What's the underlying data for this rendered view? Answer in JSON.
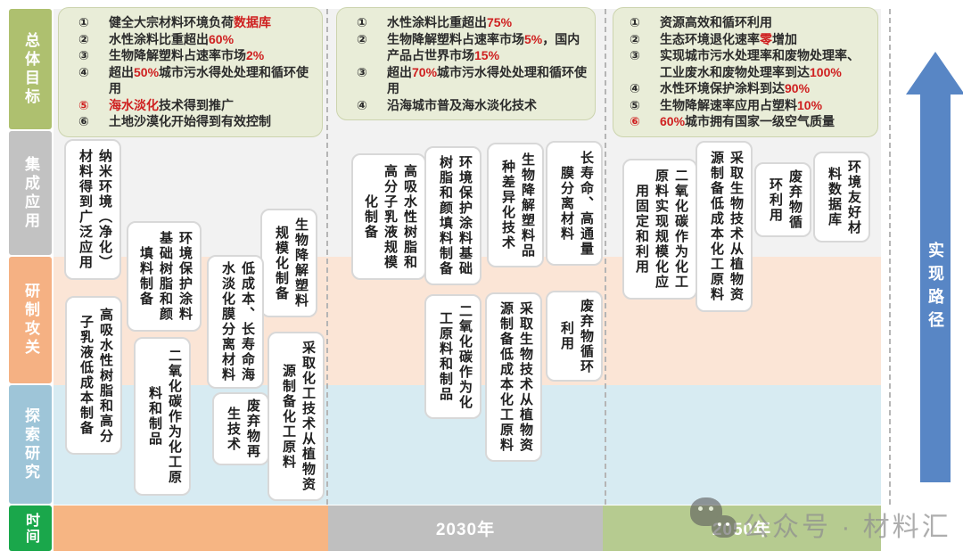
{
  "sidebar": {
    "rows": [
      {
        "label": "总体目标"
      },
      {
        "label": "集成应用"
      },
      {
        "label": "研制攻关"
      },
      {
        "label": "探索研究"
      },
      {
        "label": "时间"
      }
    ]
  },
  "goals": {
    "c1": [
      {
        "num": "①",
        "num_red": false,
        "segments": [
          {
            "t": "健全大宗材料环境负荷"
          },
          {
            "t": "数据库",
            "red": true
          }
        ]
      },
      {
        "num": "②",
        "num_red": false,
        "segments": [
          {
            "t": "水性涂料比重超出"
          },
          {
            "t": "60%",
            "red": true
          }
        ]
      },
      {
        "num": "③",
        "num_red": false,
        "segments": [
          {
            "t": "生物降解塑料占速率市场"
          },
          {
            "t": "2%",
            "red": true
          }
        ]
      },
      {
        "num": "④",
        "num_red": false,
        "segments": [
          {
            "t": "超出"
          },
          {
            "t": "50%",
            "red": true
          },
          {
            "t": "城市污水得处处理和循环使用"
          }
        ]
      },
      {
        "num": "⑤",
        "num_red": true,
        "segments": [
          {
            "t": "海水淡化",
            "red": true
          },
          {
            "t": "技术得到推广"
          }
        ]
      },
      {
        "num": "⑥",
        "num_red": false,
        "segments": [
          {
            "t": "土地沙漠化开始得到有效控制"
          }
        ]
      }
    ],
    "c2": [
      {
        "num": "①",
        "num_red": false,
        "segments": [
          {
            "t": "水性涂料比重超出"
          },
          {
            "t": "75%",
            "red": true
          }
        ]
      },
      {
        "num": "②",
        "num_red": false,
        "segments": [
          {
            "t": "生物降解塑料占速率市场"
          },
          {
            "t": "5%",
            "red": true
          },
          {
            "t": "，国内产品占世界市场"
          },
          {
            "t": "15%",
            "red": true
          }
        ]
      },
      {
        "num": "③",
        "num_red": false,
        "segments": [
          {
            "t": "超出"
          },
          {
            "t": "70%",
            "red": true
          },
          {
            "t": "城市污水得处处理和循环使用"
          }
        ]
      },
      {
        "num": "④",
        "num_red": false,
        "segments": [
          {
            "t": "沿海城市普及海水淡化技术"
          }
        ]
      }
    ],
    "c3": [
      {
        "num": "①",
        "num_red": false,
        "segments": [
          {
            "t": "资源高效和循环利用"
          }
        ]
      },
      {
        "num": "②",
        "num_red": false,
        "segments": [
          {
            "t": "生态环境退化速率"
          },
          {
            "t": "零",
            "red": true
          },
          {
            "t": "增加"
          }
        ]
      },
      {
        "num": "③",
        "num_red": false,
        "segments": [
          {
            "t": "实现城市污水处理率和废物处理率、工业废水和废物处理率到达"
          },
          {
            "t": "100%",
            "red": true
          }
        ]
      },
      {
        "num": "④",
        "num_red": false,
        "segments": [
          {
            "t": "水性环境保护涂料到达"
          },
          {
            "t": "90%",
            "red": true
          }
        ]
      },
      {
        "num": "⑤",
        "num_red": false,
        "segments": [
          {
            "t": "生物降解速率应用占塑料"
          },
          {
            "t": "10%",
            "red": true
          }
        ]
      },
      {
        "num": "⑥",
        "num_red": true,
        "segments": [
          {
            "t": "60%",
            "red": true
          },
          {
            "t": "城市拥有国家一级空气质量"
          }
        ]
      }
    ]
  },
  "boxes": {
    "c1": [
      {
        "text": "纳米环境（净化）\n材料得到广泛应用"
      },
      {
        "text": "环境保护涂料\n基础树脂和颜\n填料制备"
      },
      {
        "text": "高吸水性树脂和高分\n子乳液低成本制备"
      },
      {
        "text": "二氧化碳作为化工原\n料和制品"
      },
      {
        "text": "生物降解塑料\n规模化制备"
      },
      {
        "text": "低成本、长寿命海\n水淡化膜分离材料"
      },
      {
        "text": "废弃物再\n生技术"
      },
      {
        "text": "采取化工技术从植物资\n源制备化工原料"
      }
    ],
    "c2": [
      {
        "text": "高吸水性树脂和\n高分子乳液规模\n化制备"
      },
      {
        "text": "环境保护涂料基础\n树脂和颜填料制备"
      },
      {
        "text": "二氧化碳作为化\n工原料和制品"
      },
      {
        "text": "生物降解塑料品\n种差异化技术"
      },
      {
        "text": "长寿命、高通量\n膜分离材料"
      },
      {
        "text": "废弃物循环\n利用"
      },
      {
        "text": "采取生物技术从植物资\n源制备低成本化工原料"
      }
    ],
    "c3": [
      {
        "text": "采取生物技术从植物资\n源制备低成本化工原料"
      },
      {
        "text": "二氧化碳作为化工\n原料实现规模化应\n用固定和利用"
      },
      {
        "text": "废弃物循\n环利用"
      },
      {
        "text": "环境友好材\n料数据库"
      }
    ]
  },
  "timeline": {
    "segments": [
      {
        "label": ""
      },
      {
        "label": "2030年"
      },
      {
        "label": "2050年"
      }
    ]
  },
  "arrow": {
    "label": "实现路径"
  },
  "watermark": {
    "text": "公众号 · 材料汇"
  },
  "colors": {
    "sidebar_goal": "#aec06f",
    "sidebar_app": "#c2c2c2",
    "sidebar_rd": "#f5b183",
    "sidebar_explore": "#9ec5d8",
    "sidebar_time": "#1aa74b",
    "band_top": "#f2f2f2",
    "band_rd": "#fbe5d6",
    "band_explore": "#d7ebf2",
    "goal_box": "#e9edd8",
    "timeline_orange": "#f6b583",
    "timeline_gray": "#bfbfbf",
    "timeline_green": "#b6cb90",
    "arrow_blue": "#5886c5",
    "highlight_red": "#cf2020"
  }
}
